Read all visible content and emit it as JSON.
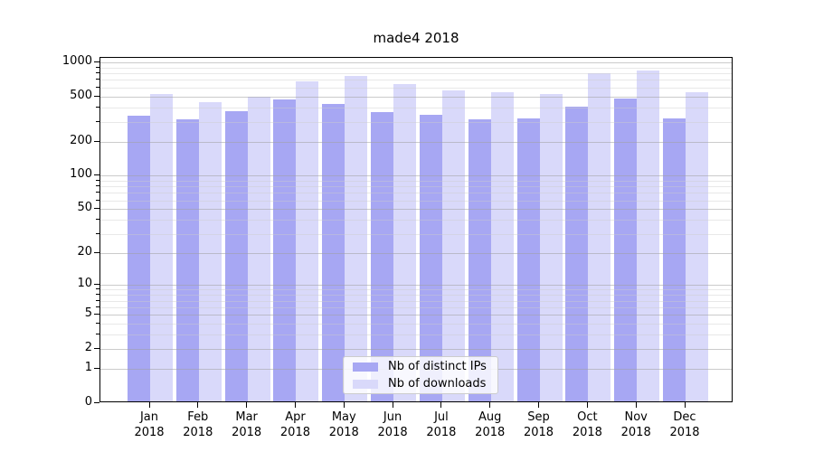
{
  "chart_data": {
    "type": "bar",
    "title": "made4 2018",
    "categories": [
      "Jan",
      "Feb",
      "Mar",
      "Apr",
      "May",
      "Jun",
      "Jul",
      "Aug",
      "Sep",
      "Oct",
      "Nov",
      "Dec"
    ],
    "year_label": "2018",
    "series": [
      {
        "name": "Nb of distinct IPs",
        "color": "#a7a7f3",
        "values": [
          340,
          315,
          370,
          470,
          430,
          365,
          345,
          315,
          320,
          405,
          480,
          320
        ]
      },
      {
        "name": "Nb of downloads",
        "color": "#d9d9fa",
        "values": [
          525,
          445,
          500,
          680,
          760,
          645,
          565,
          545,
          525,
          800,
          845,
          545
        ]
      }
    ],
    "y_scale": "log1p",
    "y_ticks": [
      0,
      1,
      2,
      5,
      10,
      20,
      50,
      100,
      200,
      500,
      1000
    ],
    "y_minor_ticks": [
      3,
      4,
      6,
      7,
      8,
      9,
      30,
      40,
      60,
      70,
      80,
      90,
      300,
      400,
      600,
      700,
      800,
      900
    ],
    "ylim": [
      0,
      1100
    ],
    "xlabel": "",
    "ylabel": "",
    "grid": true,
    "legend_position": "lower-center"
  },
  "colors": {
    "background": "#ffffff",
    "axis": "#000000",
    "grid_major": "#a0a0a0",
    "grid_minor": "#cdcdcd",
    "legend_border": "#cccccc",
    "bar_distinct_ips": "#a7a7f3",
    "bar_downloads": "#d9d9fa"
  }
}
